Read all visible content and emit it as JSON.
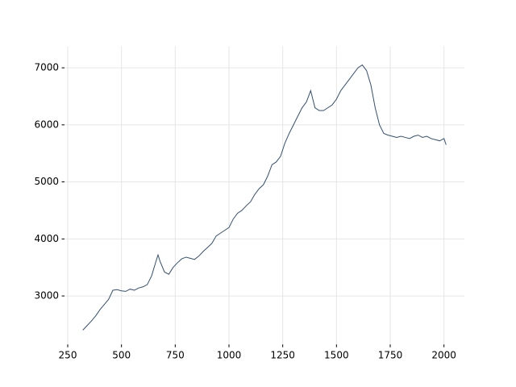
{
  "chart_data": {
    "type": "line",
    "x": [
      320,
      340,
      360,
      380,
      400,
      420,
      440,
      460,
      480,
      500,
      520,
      540,
      560,
      580,
      600,
      620,
      640,
      660,
      670,
      680,
      700,
      720,
      740,
      760,
      780,
      800,
      820,
      840,
      860,
      880,
      900,
      920,
      940,
      960,
      980,
      1000,
      1020,
      1040,
      1060,
      1080,
      1100,
      1120,
      1140,
      1160,
      1180,
      1200,
      1220,
      1240,
      1260,
      1280,
      1300,
      1320,
      1340,
      1360,
      1380,
      1400,
      1420,
      1440,
      1460,
      1480,
      1500,
      1520,
      1540,
      1560,
      1580,
      1600,
      1620,
      1640,
      1660,
      1680,
      1700,
      1720,
      1740,
      1760,
      1780,
      1800,
      1820,
      1840,
      1860,
      1880,
      1900,
      1920,
      1940,
      1960,
      1980,
      2000,
      2010
    ],
    "series": [
      {
        "color": "#34506f",
        "values": [
          2400,
          2480,
          2560,
          2650,
          2760,
          2850,
          2940,
          3100,
          3110,
          3090,
          3080,
          3120,
          3100,
          3140,
          3160,
          3200,
          3350,
          3600,
          3720,
          3600,
          3420,
          3380,
          3500,
          3580,
          3650,
          3680,
          3660,
          3640,
          3700,
          3780,
          3850,
          3920,
          4050,
          4100,
          4150,
          4200,
          4350,
          4450,
          4500,
          4580,
          4650,
          4780,
          4880,
          4950,
          5100,
          5300,
          5350,
          5450,
          5680,
          5850,
          6000,
          6150,
          6300,
          6400,
          6600,
          6300,
          6250,
          6250,
          6300,
          6350,
          6450,
          6600,
          6700,
          6800,
          6900,
          7000,
          7050,
          6950,
          6700,
          6300,
          6000,
          5850,
          5820,
          5800,
          5780,
          5800,
          5780,
          5760,
          5800,
          5820,
          5780,
          5800,
          5760,
          5740,
          5720,
          5760,
          5650
        ]
      }
    ],
    "xlim": [
      235,
      2095
    ],
    "ylim": [
      2150,
      7375
    ],
    "xticks": [
      250,
      500,
      750,
      1000,
      1250,
      1500,
      1750,
      2000
    ],
    "yticks": [
      3000,
      4000,
      5000,
      6000,
      7000
    ],
    "grid": true
  }
}
